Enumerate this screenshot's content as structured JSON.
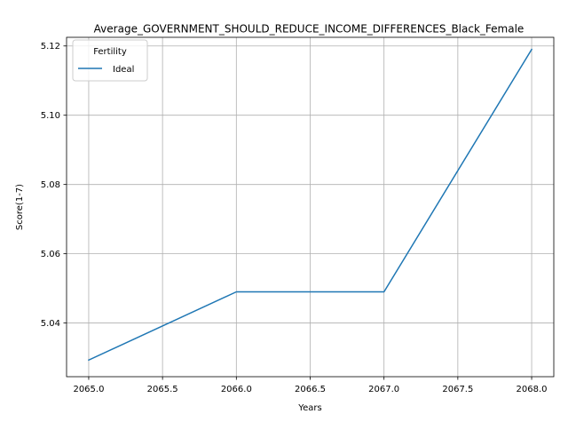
{
  "chart_data": {
    "type": "line",
    "title": "Average_GOVERNMENT_SHOULD_REDUCE_INCOME_DIFFERENCES_Black_Female",
    "xlabel": "Years",
    "ylabel": "Score(1-7)",
    "x": [
      2065,
      2066,
      2067,
      2068
    ],
    "series": [
      {
        "name": "Ideal",
        "values": [
          5.0293,
          5.049,
          5.049,
          5.119
        ]
      }
    ],
    "xlim": [
      2064.85,
      2068.15
    ],
    "ylim": [
      5.0245,
      5.1225
    ],
    "x_ticks": [
      2065.0,
      2065.5,
      2066.0,
      2066.5,
      2067.0,
      2067.5,
      2068.0
    ],
    "x_tick_labels": [
      "2065.0",
      "2065.5",
      "2066.0",
      "2066.5",
      "2067.0",
      "2067.5",
      "2068.0"
    ],
    "y_ticks": [
      5.04,
      5.06,
      5.08,
      5.1,
      5.12
    ],
    "y_tick_labels": [
      "5.04",
      "5.06",
      "5.08",
      "5.10",
      "5.12"
    ],
    "grid": true,
    "legend": {
      "title": "Fertility",
      "placement": "top-left"
    },
    "colors": {
      "series": "#1f77b4",
      "grid": "#b0b0b0",
      "axis": "#000000"
    }
  }
}
